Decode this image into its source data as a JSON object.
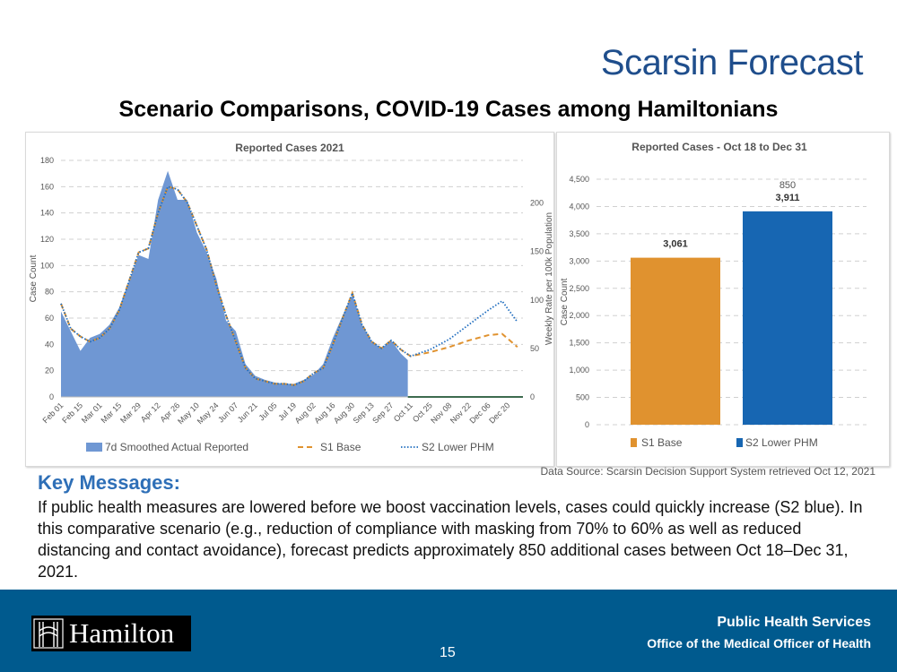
{
  "header": {
    "title": "Scarsin Forecast",
    "subtitle": "Scenario Comparisons, COVID-19 Cases among Hamiltonians"
  },
  "colors": {
    "actual": "#6f97d3",
    "s1": "#e0922f",
    "s2": "#1f6dbf",
    "s2_bar": "#1766b2",
    "title": "#1f4e8c",
    "footer": "#005a8e"
  },
  "chart_data": [
    {
      "type": "area",
      "title": "Reported Cases 2021",
      "ylabel": "Case Count",
      "y2label": "Weekly Rate per 100k Population",
      "ylim": [
        0,
        180
      ],
      "yticks": [
        "0",
        "20",
        "40",
        "60",
        "80",
        "100",
        "120",
        "140",
        "160",
        "180"
      ],
      "y2ticks": [
        "0",
        "50",
        "100",
        "150",
        "200"
      ],
      "y2lim": [
        0,
        244
      ],
      "xticks": [
        "Feb 01",
        "Feb 15",
        "Mar 01",
        "Mar 15",
        "Mar 29",
        "Apr 12",
        "Apr 26",
        "May 10",
        "May 24",
        "Jun 07",
        "Jun 21",
        "Jul 05",
        "Jul 19",
        "Aug 02",
        "Aug 16",
        "Aug 30",
        "Sep 13",
        "Sep 27",
        "Oct 11",
        "Oct 25",
        "Nov 08",
        "Nov 22",
        "Dec 06",
        "Dec 20"
      ],
      "grid": true,
      "legend": "bottom",
      "series": [
        {
          "name": "7d Smoothed Actual Reported",
          "kind": "area",
          "x": [
            "2021-02-01",
            "2021-02-08",
            "2021-02-15",
            "2021-02-22",
            "2021-03-01",
            "2021-03-08",
            "2021-03-15",
            "2021-03-22",
            "2021-03-29",
            "2021-04-05",
            "2021-04-12",
            "2021-04-19",
            "2021-04-26",
            "2021-05-03",
            "2021-05-10",
            "2021-05-17",
            "2021-05-24",
            "2021-05-31",
            "2021-06-07",
            "2021-06-14",
            "2021-06-21",
            "2021-06-28",
            "2021-07-05",
            "2021-07-12",
            "2021-07-19",
            "2021-07-26",
            "2021-08-02",
            "2021-08-09",
            "2021-08-16",
            "2021-08-23",
            "2021-08-30",
            "2021-09-06",
            "2021-09-13",
            "2021-09-20",
            "2021-09-27",
            "2021-10-04",
            "2021-10-09"
          ],
          "values": [
            65,
            50,
            35,
            45,
            48,
            55,
            68,
            88,
            108,
            105,
            150,
            172,
            150,
            150,
            125,
            110,
            90,
            58,
            50,
            25,
            16,
            13,
            11,
            10,
            10,
            13,
            17,
            25,
            45,
            62,
            78,
            55,
            42,
            37,
            43,
            33,
            28
          ]
        },
        {
          "name": "S1 Base",
          "kind": "dashed",
          "x": [
            "2021-02-01",
            "2021-02-08",
            "2021-02-15",
            "2021-02-22",
            "2021-03-01",
            "2021-03-08",
            "2021-03-15",
            "2021-03-22",
            "2021-03-29",
            "2021-04-05",
            "2021-04-12",
            "2021-04-19",
            "2021-04-26",
            "2021-05-03",
            "2021-05-10",
            "2021-05-17",
            "2021-05-24",
            "2021-05-31",
            "2021-06-07",
            "2021-06-14",
            "2021-06-21",
            "2021-06-28",
            "2021-07-05",
            "2021-07-12",
            "2021-07-19",
            "2021-07-26",
            "2021-08-02",
            "2021-08-09",
            "2021-08-16",
            "2021-08-23",
            "2021-08-30",
            "2021-09-06",
            "2021-09-13",
            "2021-09-20",
            "2021-09-27",
            "2021-10-04",
            "2021-10-11",
            "2021-10-25",
            "2021-11-08",
            "2021-11-22",
            "2021-12-06",
            "2021-12-16",
            "2021-12-27"
          ],
          "values": [
            71,
            52,
            46,
            42,
            45,
            52,
            66,
            88,
            110,
            113,
            140,
            160,
            158,
            148,
            130,
            112,
            85,
            62,
            42,
            22,
            14,
            12,
            10,
            10,
            9,
            12,
            18,
            22,
            40,
            60,
            79,
            55,
            42,
            37,
            43,
            36,
            31,
            34,
            38,
            43,
            47,
            48,
            38
          ]
        },
        {
          "name": "S2 Lower PHM",
          "kind": "dotted",
          "x": [
            "2021-02-01",
            "2021-02-08",
            "2021-02-15",
            "2021-02-22",
            "2021-03-01",
            "2021-03-08",
            "2021-03-15",
            "2021-03-22",
            "2021-03-29",
            "2021-04-05",
            "2021-04-12",
            "2021-04-19",
            "2021-04-26",
            "2021-05-03",
            "2021-05-10",
            "2021-05-17",
            "2021-05-24",
            "2021-05-31",
            "2021-06-07",
            "2021-06-14",
            "2021-06-21",
            "2021-06-28",
            "2021-07-05",
            "2021-07-12",
            "2021-07-19",
            "2021-07-26",
            "2021-08-02",
            "2021-08-09",
            "2021-08-16",
            "2021-08-23",
            "2021-08-30",
            "2021-09-06",
            "2021-09-13",
            "2021-09-20",
            "2021-09-27",
            "2021-10-04",
            "2021-10-11",
            "2021-10-25",
            "2021-11-08",
            "2021-11-22",
            "2021-12-06",
            "2021-12-16",
            "2021-12-27"
          ],
          "values": [
            71,
            52,
            46,
            42,
            45,
            52,
            66,
            88,
            110,
            113,
            140,
            160,
            158,
            148,
            130,
            112,
            85,
            62,
            42,
            22,
            14,
            12,
            10,
            10,
            9,
            12,
            18,
            22,
            40,
            60,
            79,
            55,
            42,
            37,
            43,
            36,
            31,
            36,
            44,
            55,
            66,
            73,
            57
          ]
        }
      ]
    },
    {
      "type": "bar",
      "title": "Reported Cases - Oct 18 to Dec 31",
      "ylabel": "Case Count",
      "ylim": [
        0,
        4500
      ],
      "yticks": [
        "0",
        "500",
        "1,000",
        "1,500",
        "2,000",
        "2,500",
        "3,000",
        "3,500",
        "4,000",
        "4,500"
      ],
      "categories": [
        "S1 Base",
        "S2 Lower PHM"
      ],
      "values": [
        3061,
        3911
      ],
      "data_labels": [
        "3,061",
        "3,911"
      ],
      "annotation": "850",
      "grid": true,
      "legend": "bottom"
    }
  ],
  "source": "Data Source: Scarsin Decision Support System retrieved Oct 12, 2021",
  "key_messages": {
    "heading": "Key Messages:",
    "body": "If public health measures are lowered before we boost vaccination levels, cases could quickly increase (S2 blue). In this comparative scenario (e.g., reduction of compliance with masking from 70% to 60% as well as reduced distancing and contact avoidance), forecast predicts approximately 850 additional cases between Oct 18–Dec 31, 2021."
  },
  "footer": {
    "logo_text": "Hamilton",
    "org": "Public Health Services",
    "office": "Office of the Medical Officer of Health",
    "page": "15"
  }
}
